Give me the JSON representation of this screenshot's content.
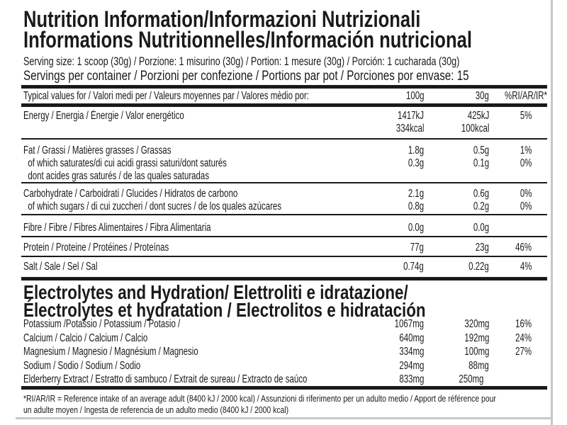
{
  "title": {
    "line1": "Nutrition Information/Informazioni Nutrizionali",
    "line2": "Informations Nutritionnelles/Información nutricional"
  },
  "serving_size": "Serving size: 1 scoop (30g) / Porzione: 1 misurino (30g) / Portion: 1 mesure (30g) / Porción: 1 cucharada (30g)",
  "servings_per_container": "Servings per container / Porzioni per confezione / Portions par pot / Porciones por envase: 15",
  "table_header": {
    "label": "Typical values for / Valori medi per / Valeurs moyennes par / Valores mèdio por:",
    "col1": "100g",
    "col2": "30g",
    "col3": "%RI/AR/IR*"
  },
  "nutrients": [
    {
      "lines": [
        "Energy / Energia / Énergie / Valor energético",
        ""
      ],
      "col1": [
        "1417kJ",
        "334kcal"
      ],
      "col2": [
        "425kJ",
        "100kcal"
      ],
      "col3": [
        "5%",
        ""
      ]
    },
    {
      "lines": [
        "Fat / Grassi / Matières grasses / Grassas",
        "  of which saturates/di cui acidi grassi saturi/dont saturés",
        "  dont acides gras saturés / de las quales saturadas"
      ],
      "col1": [
        "1.8g",
        "0.3g"
      ],
      "col2": [
        "0.5g",
        "0.1g"
      ],
      "col3": [
        "1%",
        "0%"
      ]
    },
    {
      "lines": [
        "Carbohydrate / Carboidrati / Glucides / Hidratos de carbono",
        "  of which sugars / di cui zuccheri / dont sucres / de los quales azúcares"
      ],
      "col1": [
        "2.1g",
        "0.8g"
      ],
      "col2": [
        "0.6g",
        "0.2g"
      ],
      "col3": [
        "0%",
        "0%"
      ]
    },
    {
      "lines": [
        "Fibre / Fibre / Fibres Alimentaires / Fibra Alimentaria"
      ],
      "col1": [
        "0.0g"
      ],
      "col2": [
        "0.0g"
      ],
      "col3": [
        ""
      ]
    },
    {
      "lines": [
        "Protein / Proteine / Protéines / Proteínas"
      ],
      "col1": [
        "77g"
      ],
      "col2": [
        "23g"
      ],
      "col3": [
        "46%"
      ]
    },
    {
      "lines": [
        "Salt / Sale / Sel / Sal"
      ],
      "col1": [
        "0.74g"
      ],
      "col2": [
        "0.22g"
      ],
      "col3": [
        "4%"
      ]
    }
  ],
  "electrolytes": {
    "heading_line1": "Electrolytes and Hydration/ Elettroliti e idratazione/",
    "heading_line2": "Électrolytes et hydratation / Electrolitos e hidratación",
    "rows": [
      {
        "label": "Potassium /Potassio / Potassium / Potasio /",
        "col1": "1067mg",
        "col2": "320mg",
        "col3": "16%"
      },
      {
        "label": "Calcium / Calcio / Calcium / Calcio",
        "col1": "640mg",
        "col2": "192mg",
        "col3": "24%"
      },
      {
        "label": "Magnesium / Magnesio / Magnésium / Magnesio",
        "col1": "334mg",
        "col2": "100mg",
        "col3": "27%"
      },
      {
        "label": "Sodium / Sodio / Sodium / Sodio",
        "col1": "294mg",
        "col2": "88mg",
        "col3": ""
      },
      {
        "label": "Elderberry Extract / Estratto di sambuco / Extrait de sureau / Extracto de saúco",
        "col1": "833mg",
        "col2": "250mg",
        "col3": ""
      }
    ]
  },
  "footnote": {
    "line1": "*RI/AR/IR = Reference intake of an average adult (8400 kJ / 2000 kcal)  / Assunzioni di riferimento per un adulto medio / Apport de référence pour",
    "line2": "un adulte moyen / Ingesta de referencia de un adulto medio (8400 kJ / 2000 kcal)"
  }
}
